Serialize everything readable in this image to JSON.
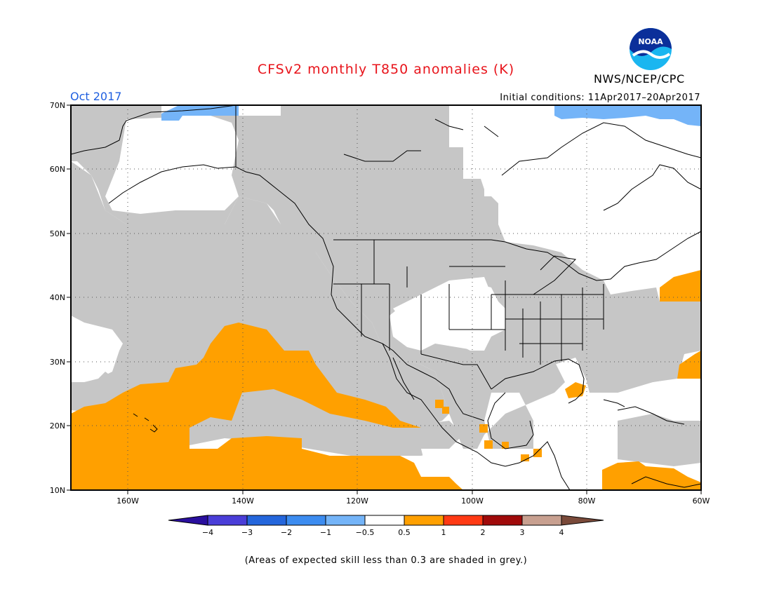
{
  "title": "CFSv2 monthly T850 anomalies (K)",
  "organization": "NWS/NCEP/CPC",
  "logo_text": "NOAA",
  "month": "Oct 2017",
  "initial_conditions": "Initial conditions: 11Apr2017–20Apr2017",
  "footnote": "(Areas of expected skill less than 0.3 are shaded in grey.)",
  "map": {
    "lat_labels": [
      "70N",
      "60N",
      "50N",
      "40N",
      "30N",
      "20N",
      "10N"
    ],
    "lon_labels": [
      "160W",
      "140W",
      "120W",
      "100W",
      "80W",
      "60W"
    ],
    "colors": {
      "low_skill_grey": "#c6c6c6",
      "warm_anomaly_orange": "#ffa000",
      "cool_anomaly_blue": "#74b4f8",
      "land_outline": "#000000"
    }
  },
  "colorbar": {
    "labels": [
      "−4",
      "−3",
      "−2",
      "−1",
      "−0.5",
      "0.5",
      "1",
      "2",
      "3",
      "4"
    ],
    "colors": [
      "#2a0f9e",
      "#4a3ed8",
      "#2466dc",
      "#3c8cf0",
      "#74b4f8",
      "#ffffff",
      "#ffa000",
      "#ff3a14",
      "#a00a0a",
      "#c8a090",
      "#7a4a3a"
    ]
  }
}
